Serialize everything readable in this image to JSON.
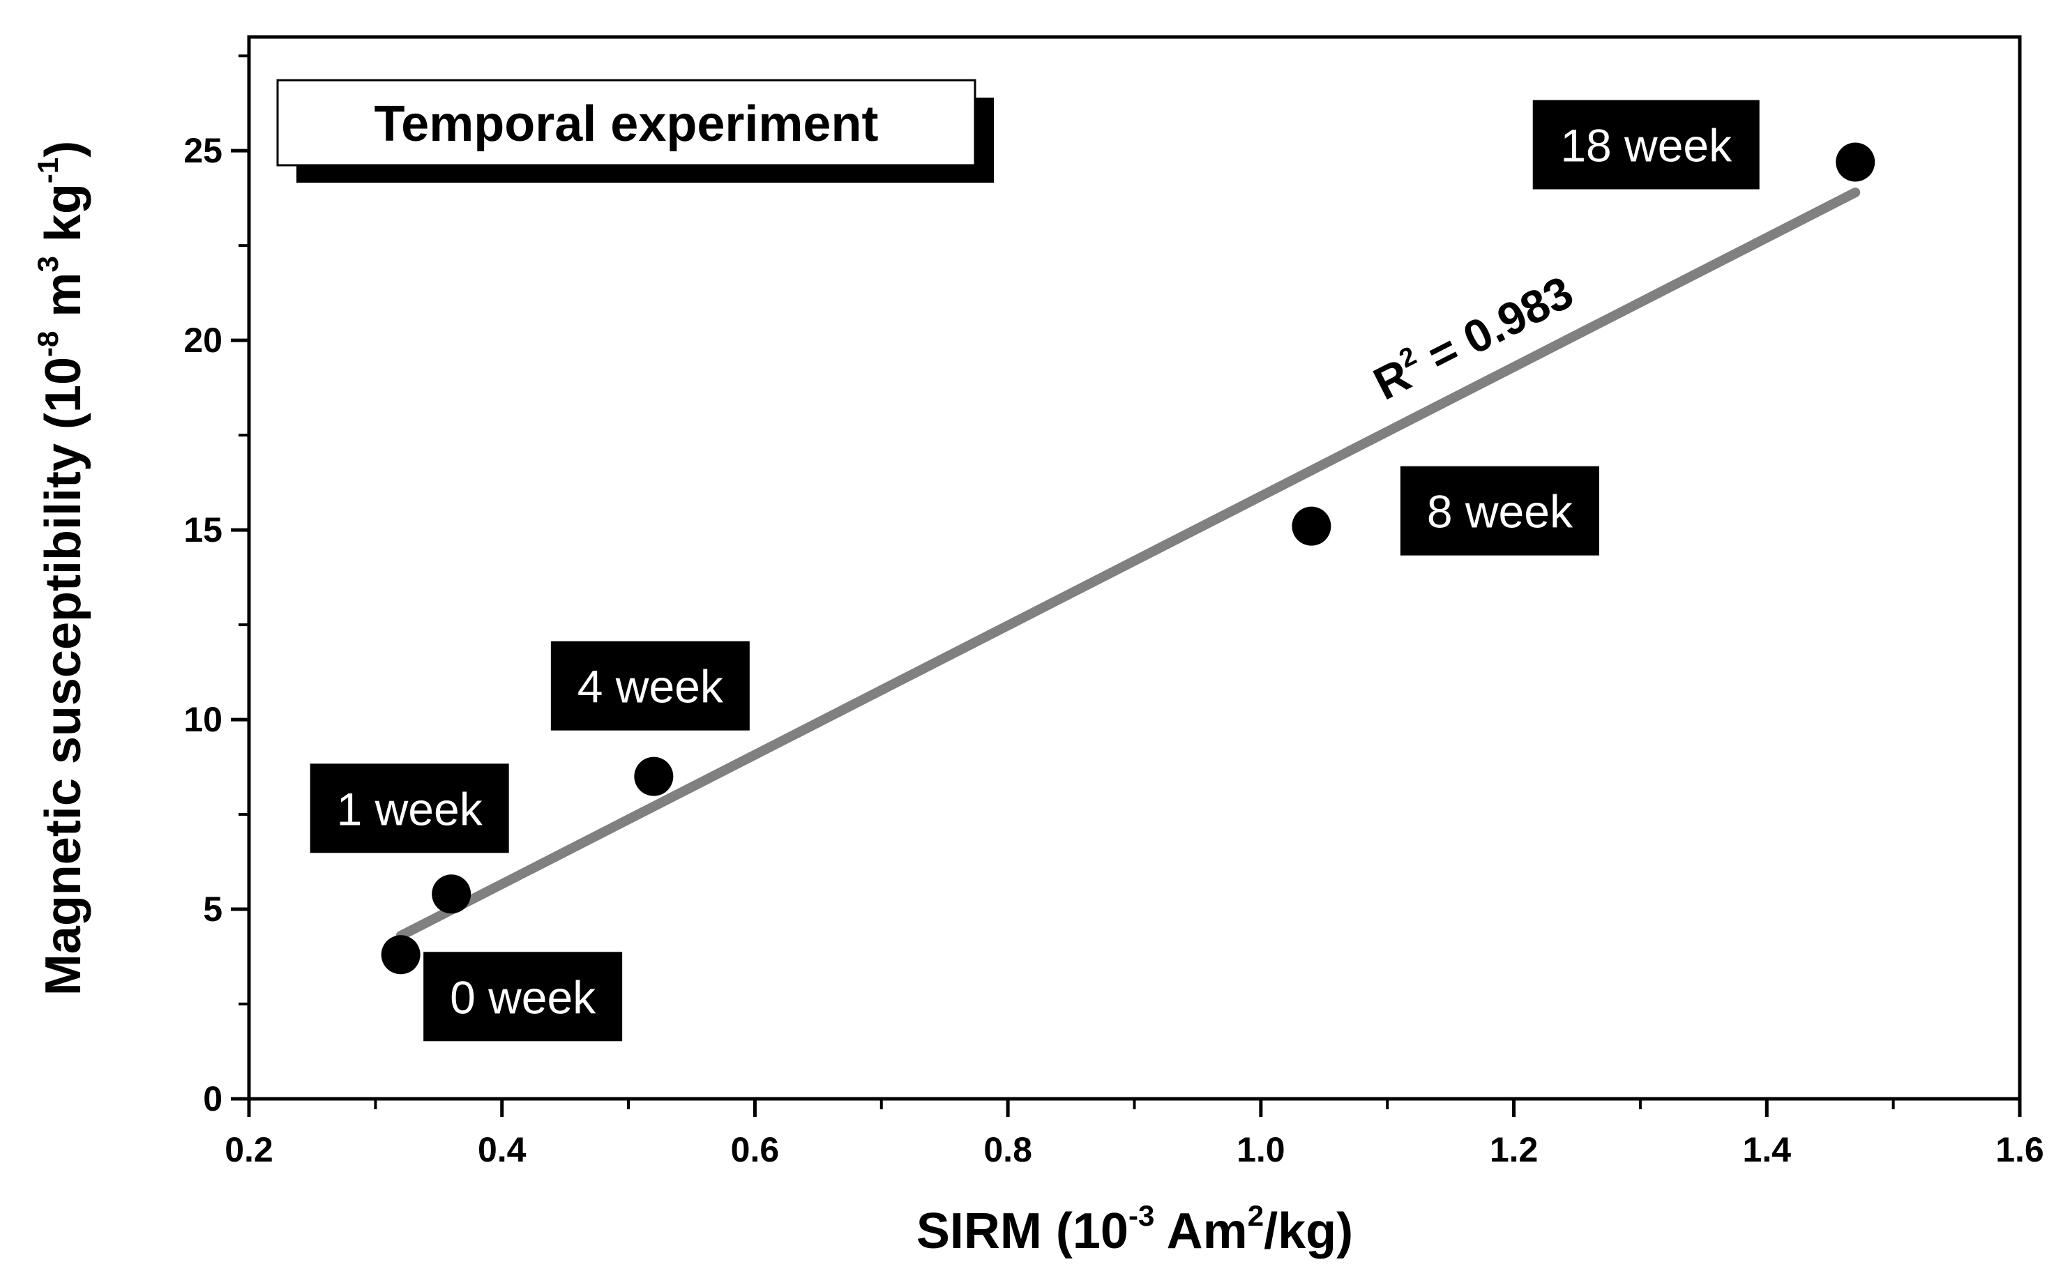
{
  "chart_data": {
    "type": "scatter",
    "title": "Temporal experiment",
    "xlabel": {
      "base": "SIRM (10",
      "exp1": "-3",
      "mid": " Am",
      "exp2": "2",
      "tail": "/kg)"
    },
    "ylabel": {
      "base": "Magnetic susceptibility (10",
      "exp1": "-8",
      "mid": " m",
      "exp2": "3",
      "mid2": " kg",
      "exp3": "-1",
      "tail": ")"
    },
    "xlim": [
      0.2,
      1.6
    ],
    "ylim": [
      0,
      28
    ],
    "x_ticks": [
      0.2,
      0.4,
      0.6,
      0.8,
      1.0,
      1.2,
      1.4,
      1.6
    ],
    "x_tick_labels": [
      "0.2",
      "0.4",
      "0.6",
      "0.8",
      "1.0",
      "1.2",
      "1.4",
      "1.6"
    ],
    "y_ticks": [
      0,
      5,
      10,
      15,
      20,
      25
    ],
    "y_tick_labels": [
      "0",
      "5",
      "10",
      "15",
      "20",
      "25"
    ],
    "points": [
      {
        "label": "0 week",
        "x": 0.32,
        "y": 3.8
      },
      {
        "label": "1 week",
        "x": 0.36,
        "y": 5.4
      },
      {
        "label": "4 week",
        "x": 0.52,
        "y": 8.5
      },
      {
        "label": "8 week",
        "x": 1.04,
        "y": 15.1
      },
      {
        "label": "18 week",
        "x": 1.47,
        "y": 24.7
      }
    ],
    "fit": {
      "x_start": 0.32,
      "y_start": 4.3,
      "x_end": 1.47,
      "y_end": 23.9,
      "r2_prefix": "R",
      "r2_exp": "2",
      "r2_value": " = 0.983"
    },
    "colors": {
      "points": "#000000",
      "fit": "#808080",
      "label_bg": "#000000",
      "label_text": "#ffffff"
    }
  }
}
